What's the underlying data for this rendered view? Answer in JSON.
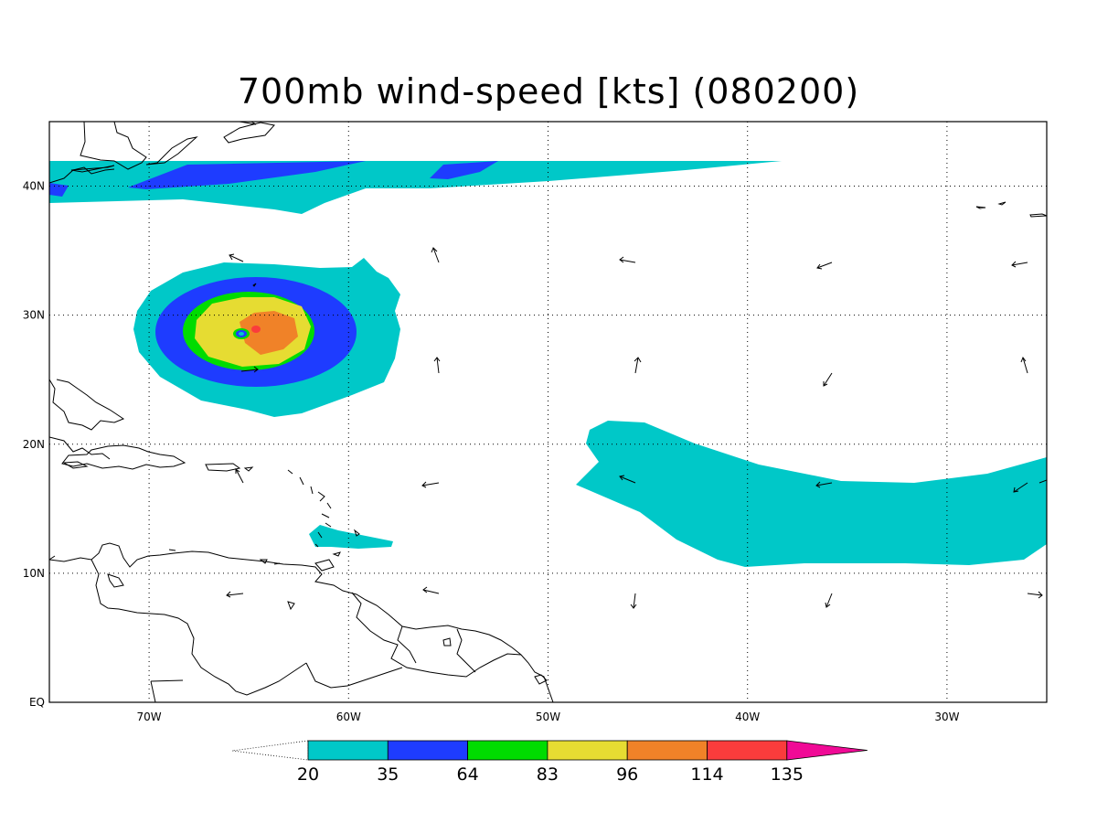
{
  "title": "700mb wind-speed [kts] (080200)",
  "map": {
    "lon_range": [
      -75,
      -25
    ],
    "lat_range": [
      0,
      45
    ],
    "lat_labels": [
      {
        "value": 40,
        "text": "40N"
      },
      {
        "value": 30,
        "text": "30N"
      },
      {
        "value": 20,
        "text": "20N"
      },
      {
        "value": 10,
        "text": "10N"
      },
      {
        "value": 0,
        "text": "EQ"
      }
    ],
    "lon_labels": [
      {
        "value": -70,
        "text": "70W"
      },
      {
        "value": -60,
        "text": "60W"
      },
      {
        "value": -50,
        "text": "50W"
      },
      {
        "value": -40,
        "text": "40W"
      },
      {
        "value": -30,
        "text": "30W"
      }
    ],
    "grid": true,
    "coastline_color": "#000000"
  },
  "colorbar": {
    "labels": [
      "20",
      "35",
      "64",
      "83",
      "96",
      "114",
      "135"
    ],
    "colors": [
      "#00c8c8",
      "#1e3cff",
      "#00dc00",
      "#e6dc32",
      "#f08228",
      "#fa3c3c",
      "#f00a96"
    ]
  }
}
